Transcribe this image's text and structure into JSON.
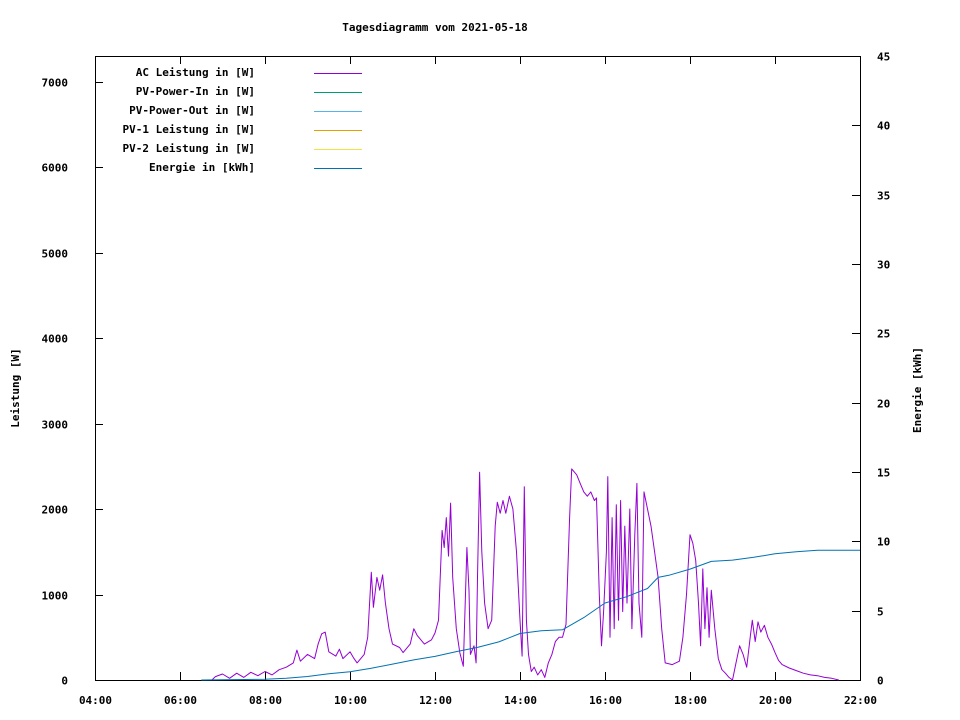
{
  "chart_data": {
    "type": "line",
    "title": "Tagesdiagramm vom 2021-05-18",
    "ylabel": "Leistung [W]",
    "y2label": "Energie [kWh]",
    "xlim": [
      "04:00",
      "22:00"
    ],
    "ylim": [
      0,
      7300
    ],
    "y2lim": [
      0,
      45
    ],
    "x_ticks": [
      "04:00",
      "06:00",
      "08:00",
      "10:00",
      "12:00",
      "14:00",
      "16:00",
      "18:00",
      "20:00",
      "22:00"
    ],
    "y_ticks": [
      "0",
      "1000",
      "2000",
      "3000",
      "4000",
      "5000",
      "6000",
      "7000"
    ],
    "y2_ticks": [
      "0",
      "5",
      "10",
      "15",
      "20",
      "25",
      "30",
      "35",
      "40",
      "45"
    ],
    "legend_position": "top-left",
    "series": [
      {
        "name": "AC Leistung in [W]",
        "color": "#9400d3",
        "axis": "left",
        "points": [
          [
            "06:45",
            0
          ],
          [
            "06:50",
            40
          ],
          [
            "07:00",
            70
          ],
          [
            "07:10",
            20
          ],
          [
            "07:20",
            80
          ],
          [
            "07:30",
            30
          ],
          [
            "07:40",
            90
          ],
          [
            "07:50",
            50
          ],
          [
            "08:00",
            100
          ],
          [
            "08:10",
            60
          ],
          [
            "08:20",
            120
          ],
          [
            "08:30",
            150
          ],
          [
            "08:40",
            200
          ],
          [
            "08:45",
            350
          ],
          [
            "08:50",
            220
          ],
          [
            "09:00",
            300
          ],
          [
            "09:10",
            250
          ],
          [
            "09:15",
            420
          ],
          [
            "09:20",
            540
          ],
          [
            "09:25",
            560
          ],
          [
            "09:30",
            330
          ],
          [
            "09:40",
            280
          ],
          [
            "09:45",
            360
          ],
          [
            "09:50",
            250
          ],
          [
            "10:00",
            330
          ],
          [
            "10:05",
            260
          ],
          [
            "10:10",
            200
          ],
          [
            "10:20",
            300
          ],
          [
            "10:25",
            500
          ],
          [
            "10:30",
            1260
          ],
          [
            "10:33",
            850
          ],
          [
            "10:38",
            1200
          ],
          [
            "10:42",
            1050
          ],
          [
            "10:46",
            1230
          ],
          [
            "10:50",
            900
          ],
          [
            "10:55",
            600
          ],
          [
            "11:00",
            420
          ],
          [
            "11:10",
            380
          ],
          [
            "11:15",
            320
          ],
          [
            "11:25",
            420
          ],
          [
            "11:30",
            600
          ],
          [
            "11:35",
            520
          ],
          [
            "11:45",
            420
          ],
          [
            "11:55",
            470
          ],
          [
            "12:00",
            550
          ],
          [
            "12:05",
            700
          ],
          [
            "12:10",
            1750
          ],
          [
            "12:13",
            1550
          ],
          [
            "12:16",
            1900
          ],
          [
            "12:19",
            1450
          ],
          [
            "12:22",
            2070
          ],
          [
            "12:25",
            1200
          ],
          [
            "12:30",
            600
          ],
          [
            "12:35",
            320
          ],
          [
            "12:40",
            160
          ],
          [
            "12:45",
            1550
          ],
          [
            "12:48",
            1050
          ],
          [
            "12:50",
            300
          ],
          [
            "12:55",
            400
          ],
          [
            "12:58",
            200
          ],
          [
            "13:00",
            1200
          ],
          [
            "13:03",
            2430
          ],
          [
            "13:06",
            1500
          ],
          [
            "13:10",
            900
          ],
          [
            "13:15",
            600
          ],
          [
            "13:20",
            700
          ],
          [
            "13:25",
            1800
          ],
          [
            "13:28",
            2080
          ],
          [
            "13:32",
            1950
          ],
          [
            "13:36",
            2100
          ],
          [
            "13:40",
            1950
          ],
          [
            "13:45",
            2150
          ],
          [
            "13:50",
            2000
          ],
          [
            "13:55",
            1500
          ],
          [
            "14:00",
            700
          ],
          [
            "14:03",
            280
          ],
          [
            "14:06",
            2260
          ],
          [
            "14:09",
            700
          ],
          [
            "14:12",
            300
          ],
          [
            "14:16",
            100
          ],
          [
            "14:20",
            150
          ],
          [
            "14:25",
            60
          ],
          [
            "14:30",
            120
          ],
          [
            "14:35",
            30
          ],
          [
            "14:40",
            200
          ],
          [
            "14:45",
            300
          ],
          [
            "14:50",
            450
          ],
          [
            "14:55",
            500
          ],
          [
            "15:00",
            500
          ],
          [
            "15:05",
            650
          ],
          [
            "15:10",
            1900
          ],
          [
            "15:13",
            2470
          ],
          [
            "15:20",
            2400
          ],
          [
            "15:25",
            2300
          ],
          [
            "15:30",
            2200
          ],
          [
            "15:35",
            2150
          ],
          [
            "15:40",
            2200
          ],
          [
            "15:45",
            2100
          ],
          [
            "15:48",
            2130
          ],
          [
            "15:52",
            1000
          ],
          [
            "15:55",
            400
          ],
          [
            "15:58",
            800
          ],
          [
            "16:02",
            1500
          ],
          [
            "16:04",
            2380
          ],
          [
            "16:07",
            500
          ],
          [
            "16:10",
            1900
          ],
          [
            "16:13",
            600
          ],
          [
            "16:16",
            2050
          ],
          [
            "16:19",
            700
          ],
          [
            "16:22",
            2100
          ],
          [
            "16:25",
            800
          ],
          [
            "16:28",
            1800
          ],
          [
            "16:31",
            900
          ],
          [
            "16:35",
            2000
          ],
          [
            "16:38",
            600
          ],
          [
            "16:42",
            1700
          ],
          [
            "16:45",
            2300
          ],
          [
            "16:48",
            900
          ],
          [
            "16:52",
            500
          ],
          [
            "16:55",
            2200
          ],
          [
            "17:00",
            2000
          ],
          [
            "17:05",
            1800
          ],
          [
            "17:10",
            1500
          ],
          [
            "17:15",
            1200
          ],
          [
            "17:20",
            600
          ],
          [
            "17:25",
            200
          ],
          [
            "17:35",
            180
          ],
          [
            "17:45",
            220
          ],
          [
            "17:50",
            500
          ],
          [
            "17:55",
            1000
          ],
          [
            "18:00",
            1700
          ],
          [
            "18:04",
            1600
          ],
          [
            "18:08",
            1400
          ],
          [
            "18:12",
            900
          ],
          [
            "18:15",
            400
          ],
          [
            "18:18",
            1300
          ],
          [
            "18:21",
            600
          ],
          [
            "18:24",
            1080
          ],
          [
            "18:27",
            500
          ],
          [
            "18:30",
            1050
          ],
          [
            "18:35",
            600
          ],
          [
            "18:40",
            250
          ],
          [
            "18:45",
            120
          ],
          [
            "18:50",
            80
          ],
          [
            "18:55",
            30
          ],
          [
            "19:00",
            0
          ],
          [
            "19:05",
            200
          ],
          [
            "19:10",
            400
          ],
          [
            "19:15",
            300
          ],
          [
            "19:20",
            150
          ],
          [
            "19:25",
            500
          ],
          [
            "19:28",
            700
          ],
          [
            "19:32",
            450
          ],
          [
            "19:36",
            680
          ],
          [
            "19:40",
            560
          ],
          [
            "19:45",
            640
          ],
          [
            "19:50",
            500
          ],
          [
            "19:55",
            420
          ],
          [
            "20:00",
            320
          ],
          [
            "20:05",
            230
          ],
          [
            "20:10",
            180
          ],
          [
            "20:20",
            140
          ],
          [
            "20:30",
            110
          ],
          [
            "20:40",
            80
          ],
          [
            "20:50",
            60
          ],
          [
            "21:00",
            50
          ],
          [
            "21:10",
            30
          ],
          [
            "21:20",
            20
          ],
          [
            "21:30",
            0
          ]
        ]
      },
      {
        "name": "PV-Power-In in [W]",
        "color": "#009e73",
        "axis": "left",
        "points": []
      },
      {
        "name": "PV-Power-Out in [W]",
        "color": "#56b4e9",
        "axis": "left",
        "points": []
      },
      {
        "name": "PV-1 Leistung in [W]",
        "color": "#e69f00",
        "axis": "left",
        "points": []
      },
      {
        "name": "PV-2 Leistung in [W]",
        "color": "#f0e442",
        "axis": "left",
        "points": []
      },
      {
        "name": "Energie in [kWh]",
        "color": "#0072b2",
        "axis": "right",
        "points": [
          [
            "06:30",
            0
          ],
          [
            "08:00",
            0.05
          ],
          [
            "08:30",
            0.12
          ],
          [
            "09:00",
            0.25
          ],
          [
            "09:30",
            0.45
          ],
          [
            "10:00",
            0.6
          ],
          [
            "10:30",
            0.85
          ],
          [
            "11:00",
            1.15
          ],
          [
            "11:30",
            1.45
          ],
          [
            "12:00",
            1.7
          ],
          [
            "12:30",
            2.05
          ],
          [
            "13:00",
            2.35
          ],
          [
            "13:30",
            2.75
          ],
          [
            "14:00",
            3.35
          ],
          [
            "14:30",
            3.55
          ],
          [
            "15:00",
            3.62
          ],
          [
            "15:30",
            4.5
          ],
          [
            "16:00",
            5.55
          ],
          [
            "16:30",
            6.0
          ],
          [
            "17:00",
            6.6
          ],
          [
            "17:15",
            7.4
          ],
          [
            "17:30",
            7.55
          ],
          [
            "18:00",
            8.0
          ],
          [
            "18:30",
            8.55
          ],
          [
            "19:00",
            8.65
          ],
          [
            "19:30",
            8.85
          ],
          [
            "20:00",
            9.1
          ],
          [
            "20:30",
            9.25
          ],
          [
            "21:00",
            9.35
          ],
          [
            "21:30",
            9.35
          ],
          [
            "22:00",
            9.35
          ]
        ]
      }
    ]
  }
}
